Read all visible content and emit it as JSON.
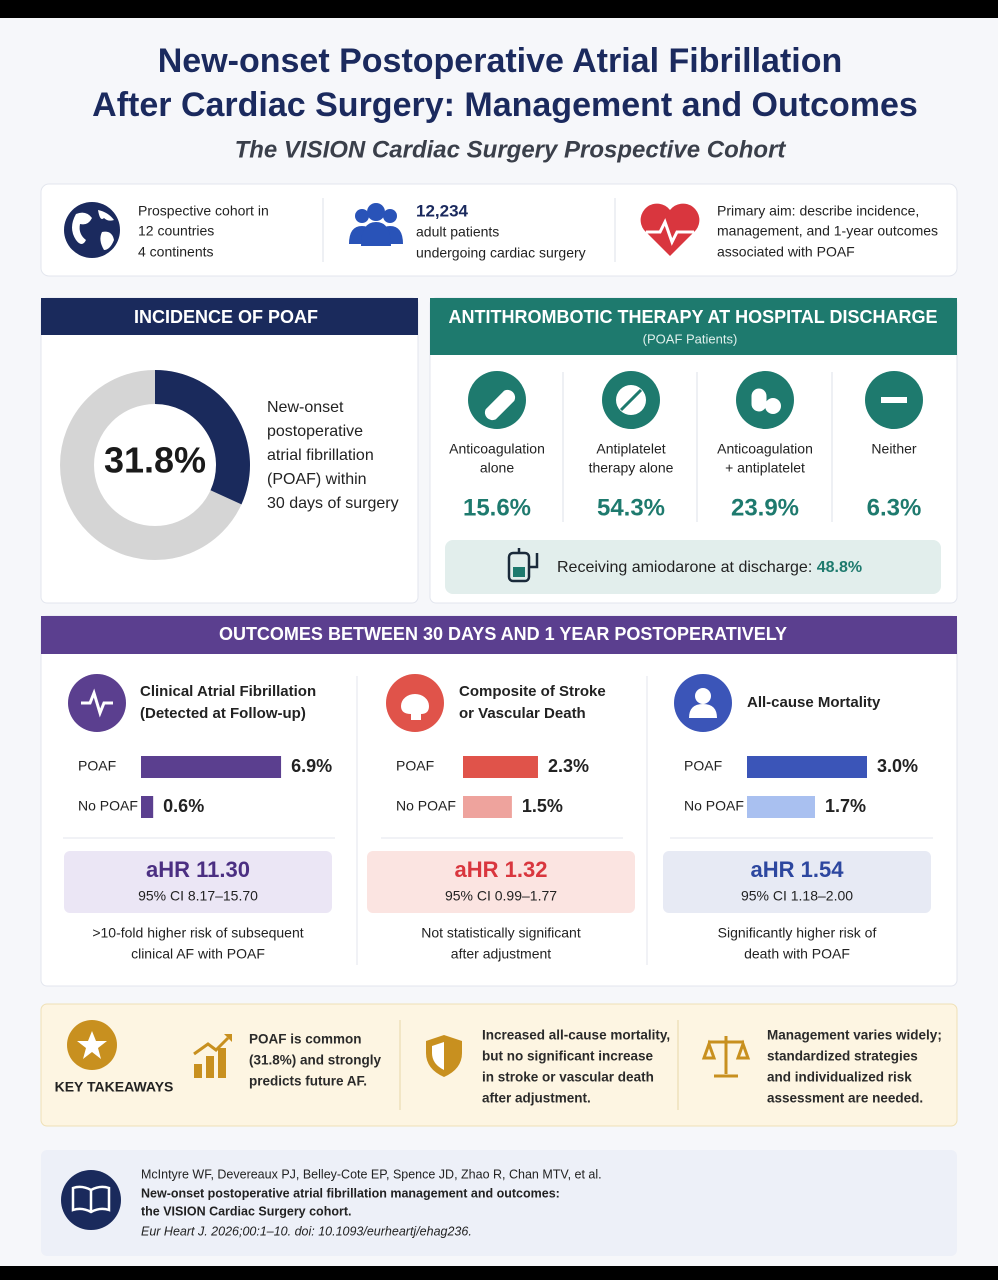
{
  "header": {
    "title_line1": "New-onset Postoperative Atrial Fibrillation",
    "title_line2": "After Cardiac Surgery: Management and Outcomes",
    "subtitle": "The VISION Cardiac Surgery Prospective Cohort"
  },
  "summary": [
    {
      "lines": [
        "Prospective cohort in",
        "12 countries",
        "4 continents"
      ]
    },
    {
      "number": "12,234",
      "lines": [
        "adult patients",
        "undergoing cardiac surgery"
      ]
    },
    {
      "lines": [
        "Primary aim: describe incidence,",
        "management, and 1-year outcomes",
        "associated with POAF"
      ]
    }
  ],
  "incidence": {
    "heading": "INCIDENCE OF POAF",
    "value": 31.8,
    "value_label": "31.8%",
    "description": [
      "New-onset",
      "postoperative",
      "atrial fibrillation",
      "(POAF) within",
      "30 days of surgery"
    ]
  },
  "therapy": {
    "heading": "ANTITHROMBOTIC THERAPY AT HOSPITAL DISCHARGE",
    "subheading": "(POAF Patients)",
    "items": [
      {
        "label": [
          "Anticoagulation",
          "alone"
        ],
        "value_label": "15.6%"
      },
      {
        "label": [
          "Antiplatelet",
          "therapy alone"
        ],
        "value_label": "54.3%"
      },
      {
        "label": [
          "Anticoagulation",
          "+ antiplatelet"
        ],
        "value_label": "23.9%"
      },
      {
        "label": [
          "Neither"
        ],
        "value_label": "6.3%"
      }
    ],
    "amiodarone": {
      "text": "Receiving amiodarone at discharge:",
      "value_label": "48.8%"
    }
  },
  "outcomes": {
    "heading": "OUTCOMES BETWEEN 30 DAYS AND 1 YEAR POSTOPERATIVELY",
    "panels": [
      {
        "title": [
          "Clinical Atrial Fibrillation",
          "(Detected at Follow-up)"
        ],
        "bars": [
          {
            "group": "POAF",
            "value": 6.9,
            "value_label": "6.9%"
          },
          {
            "group": "No POAF",
            "value": 0.6,
            "value_label": "0.6%"
          }
        ],
        "ahr": "aHR 11.30",
        "ci": "95% CI 8.17–15.70",
        "note": [
          ">10-fold higher risk of subsequent",
          "clinical AF with POAF"
        ]
      },
      {
        "title": [
          "Composite of Stroke",
          "or Vascular Death"
        ],
        "bars": [
          {
            "group": "POAF",
            "value": 2.3,
            "value_label": "2.3%"
          },
          {
            "group": "No POAF",
            "value": 1.5,
            "value_label": "1.5%"
          }
        ],
        "ahr": "aHR 1.32",
        "ci": "95% CI 0.99–1.77",
        "note": [
          "Not statistically significant",
          "after adjustment"
        ]
      },
      {
        "title": [
          "All-cause Mortality"
        ],
        "bars": [
          {
            "group": "POAF",
            "value": 3.0,
            "value_label": "3.0%"
          },
          {
            "group": "No POAF",
            "value": 1.7,
            "value_label": "1.7%"
          }
        ],
        "ahr": "aHR 1.54",
        "ci": "95% CI 1.18–2.00",
        "note": [
          "Significantly higher risk of",
          "death with POAF"
        ]
      }
    ]
  },
  "takeaways": {
    "heading": "KEY TAKEAWAYS",
    "items": [
      [
        "POAF is common",
        "(31.8%) and strongly",
        "predicts future AF."
      ],
      [
        "Increased all-cause mortality,",
        "but no significant increase",
        "in stroke or vascular death",
        "after adjustment."
      ],
      [
        "Management varies widely;",
        "standardized strategies",
        "and individualized risk",
        "assessment are needed."
      ]
    ]
  },
  "citation": {
    "authors": "McIntyre WF, Devereaux PJ, Belley-Cote EP, Spence JD, Zhao R, Chan MTV, et al.",
    "title_lines": [
      "New-onset postoperative atrial fibrillation management and outcomes:",
      "the VISION Cardiac Surgery cohort."
    ],
    "journal": "Eur Heart J. 2026;00:1–10. doi: 10.1093/eurheartj/ehag236."
  }
}
